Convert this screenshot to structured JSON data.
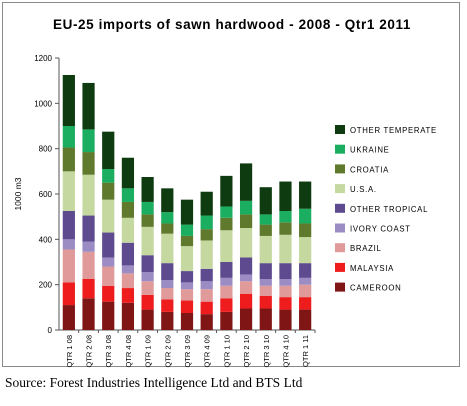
{
  "source_note": "Source: Forest Industries Intelligence Ltd and BTS Ltd",
  "chart_data": {
    "type": "bar",
    "stacked": true,
    "title": "EU-25 imports of sawn hardwood - 2008 - Qtr1 2011",
    "ylabel": "1000 m3",
    "xlabel": "",
    "ylim": [
      0,
      1200
    ],
    "yticks": [
      0,
      200,
      400,
      600,
      800,
      1000,
      1200
    ],
    "grid": false,
    "legend_position": "right",
    "categories": [
      "QTR 1 08",
      "QTR 2 08",
      "QTR 3 08",
      "QTR 4 08",
      "QTR 1 09",
      "QTR 2 09",
      "QTR 3 09",
      "QTR 4 09",
      "QTR 1 10",
      "QTR 2 10",
      "QTR 3 10",
      "QTR 4 10",
      "QTR 1 11"
    ],
    "series": [
      {
        "name": "CAMEROON",
        "color": "#7f1515",
        "values": [
          110,
          140,
          125,
          120,
          90,
          80,
          75,
          70,
          80,
          95,
          95,
          90,
          90
        ]
      },
      {
        "name": "MALAYSIA",
        "color": "#ee1c1c",
        "values": [
          100,
          85,
          70,
          65,
          65,
          55,
          55,
          55,
          60,
          65,
          55,
          55,
          55
        ]
      },
      {
        "name": "BRAZIL",
        "color": "#e09a9a",
        "values": [
          145,
          120,
          85,
          65,
          60,
          50,
          50,
          55,
          55,
          55,
          45,
          50,
          55
        ]
      },
      {
        "name": "IVORY COAST",
        "color": "#9b8cc4",
        "values": [
          45,
          45,
          40,
          35,
          40,
          35,
          30,
          35,
          35,
          30,
          30,
          30,
          30
        ]
      },
      {
        "name": "OTHER TROPICAL",
        "color": "#5e4b8f",
        "values": [
          125,
          115,
          110,
          100,
          75,
          75,
          50,
          55,
          70,
          75,
          70,
          70,
          65
        ]
      },
      {
        "name": "U.S.A.",
        "color": "#c5d8a0",
        "values": [
          175,
          180,
          145,
          110,
          125,
          130,
          110,
          125,
          140,
          130,
          120,
          125,
          115
        ]
      },
      {
        "name": "CROATIA",
        "color": "#5f7a2c",
        "values": [
          105,
          100,
          75,
          70,
          55,
          45,
          45,
          50,
          55,
          60,
          50,
          55,
          60
        ]
      },
      {
        "name": "UKRAINE",
        "color": "#1cae60",
        "values": [
          95,
          100,
          60,
          60,
          55,
          50,
          50,
          60,
          50,
          60,
          45,
          50,
          65
        ]
      },
      {
        "name": "OTHER TEMPERATE",
        "color": "#0e3b10",
        "values": [
          225,
          205,
          165,
          135,
          110,
          105,
          110,
          105,
          135,
          165,
          120,
          130,
          120
        ]
      }
    ]
  }
}
